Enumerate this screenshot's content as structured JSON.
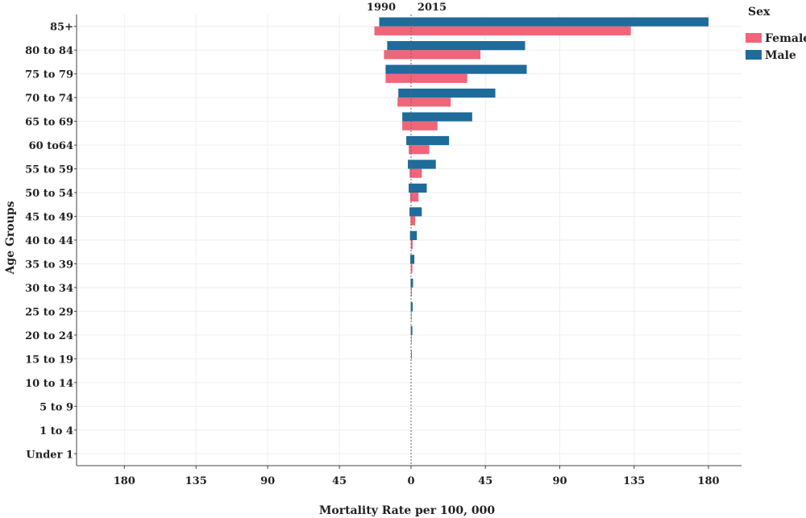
{
  "chart_data": {
    "type": "bar",
    "orientation": "horizontal",
    "layout": "back-to-back",
    "xlabel": "Mortality Rate per 100, 000",
    "ylabel": "Age Groups",
    "left_side_label": "1990",
    "right_side_label": "2015",
    "x_tick_labels": [
      "180",
      "135",
      "90",
      "45",
      "0",
      "45",
      "90",
      "135",
      "180"
    ],
    "xlim_left": [
      0,
      210
    ],
    "xlim_right": [
      0,
      200
    ],
    "legend": {
      "title": "Sex",
      "position": "top-right"
    },
    "categories": [
      "Under 1",
      "1 to 4",
      "5 to 9",
      "10 to 14",
      "15 to 19",
      "20 to 24",
      "25 to 29",
      "30 to 34",
      "35 to 39",
      "40 to 44",
      "45 to 49",
      "50 to 54",
      "55 to 59",
      "60 to64",
      "65 to 69",
      "70 to 74",
      "75 to 79",
      "80 to 84",
      "85+"
    ],
    "grid": true,
    "series": [
      {
        "name": "Female",
        "color": "#f0657a",
        "values_1990": [
          0,
          0,
          0,
          0,
          0,
          0,
          0,
          0.1,
          0.2,
          0.2,
          0.4,
          0.6,
          0.9,
          1.5,
          5.5,
          8.5,
          16,
          17,
          23
        ],
        "values_2015": [
          0,
          0,
          0,
          0,
          0,
          0.2,
          0.4,
          0.5,
          0.8,
          1,
          2.5,
          4.5,
          6.5,
          11,
          16,
          24,
          34,
          42,
          133
        ]
      },
      {
        "name": "Male",
        "color": "#1f6b9a",
        "values_1990": [
          0,
          0,
          0,
          0,
          0,
          0.2,
          0.2,
          0.3,
          0.5,
          0.7,
          1,
          1.5,
          2,
          3,
          5.5,
          8,
          16,
          15,
          20
        ],
        "values_2015": [
          0,
          0,
          0,
          0,
          0.2,
          0.8,
          1,
          1.2,
          2,
          3.5,
          6.5,
          9.5,
          15,
          23,
          37,
          51,
          70,
          69,
          180
        ]
      }
    ]
  }
}
